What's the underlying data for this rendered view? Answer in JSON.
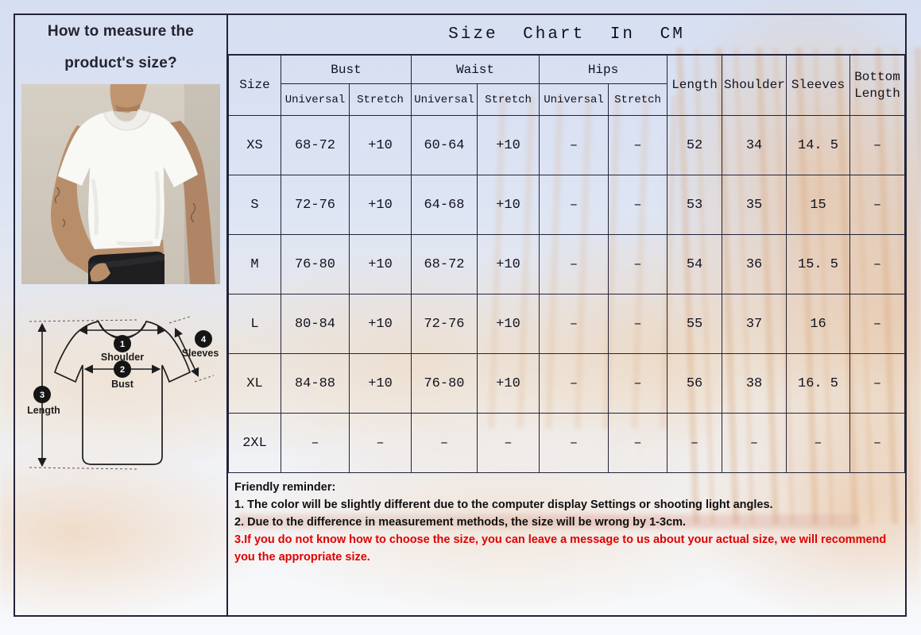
{
  "left_panel": {
    "title_line1": "How to measure the",
    "title_line2": "product's size?",
    "photo": "model-wearing-white-tshirt",
    "diagram": {
      "points": [
        {
          "num": "1",
          "label": "Shoulder"
        },
        {
          "num": "2",
          "label": "Bust"
        },
        {
          "num": "3",
          "label": "Length"
        },
        {
          "num": "4",
          "label": "Sleeves"
        }
      ]
    }
  },
  "size_table": {
    "title": "Size Chart In CM",
    "col_size": "Size",
    "groups": [
      "Bust",
      "Waist",
      "Hips"
    ],
    "sub_headers": [
      "Universal",
      "Stretch",
      "Universal",
      "Stretch",
      "Universal",
      "Stretch"
    ],
    "col_length": "Length",
    "col_shoulder": "Shoulder",
    "col_sleeves": "Sleeves",
    "col_bottom_length": "Bottom Length",
    "rows": [
      [
        "XS",
        "68-72",
        "+10",
        "60-64",
        "+10",
        "–",
        "–",
        "52",
        "34",
        "14. 5",
        "–"
      ],
      [
        "S",
        "72-76",
        "+10",
        "64-68",
        "+10",
        "–",
        "–",
        "53",
        "35",
        "15",
        "–"
      ],
      [
        "M",
        "76-80",
        "+10",
        "68-72",
        "+10",
        "–",
        "–",
        "54",
        "36",
        "15. 5",
        "–"
      ],
      [
        "L",
        "80-84",
        "+10",
        "72-76",
        "+10",
        "–",
        "–",
        "55",
        "37",
        "16",
        "–"
      ],
      [
        "XL",
        "84-88",
        "+10",
        "76-80",
        "+10",
        "–",
        "–",
        "56",
        "38",
        "16. 5",
        "–"
      ],
      [
        "2XL",
        "–",
        "–",
        "–",
        "–",
        "–",
        "–",
        "–",
        "–",
        "–",
        "–"
      ]
    ]
  },
  "reminder": {
    "heading": "Friendly reminder:",
    "line1": "1. The color will be slightly different due to the computer display Settings or shooting light angles.",
    "line2": "2. Due to the difference in measurement methods, the size will be wrong by 1-3cm.",
    "line3": "3.If you do not know how to choose the size, you can leave a message to us about your actual size, we will recommend you the appropriate size."
  },
  "colors": {
    "reminder_warning": "#e00000",
    "table_border": "#23233a",
    "sky_tint": "#cdd9ef"
  }
}
